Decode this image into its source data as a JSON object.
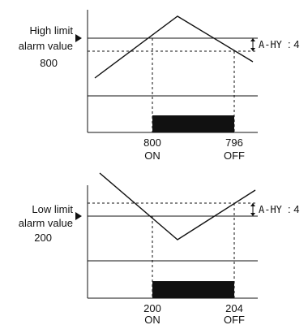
{
  "high_panel": {
    "label_line1": "High limit",
    "label_line2": "alarm value",
    "label_line3": "800",
    "hysteresis_label": "A-HY",
    "hysteresis_value": ": 4",
    "on_value": "800",
    "on_text": "ON",
    "off_value": "796",
    "off_text": "OFF"
  },
  "low_panel": {
    "label_line1": "Low limit",
    "label_line2": "alarm value",
    "label_line3": "200",
    "hysteresis_label": "A-HY",
    "hysteresis_value": ": 4",
    "on_value": "200",
    "on_text": "ON",
    "off_value": "204",
    "off_text": "OFF"
  }
}
